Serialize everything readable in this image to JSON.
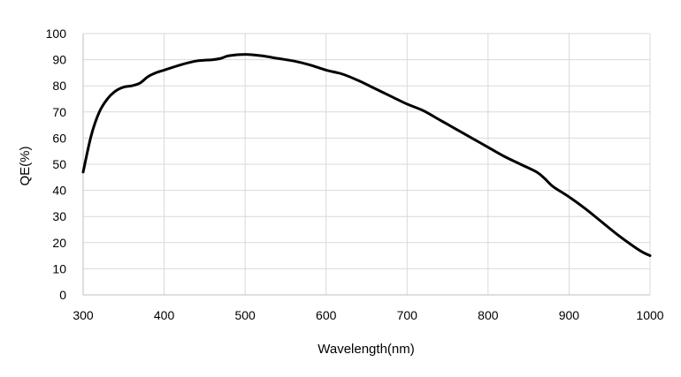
{
  "chart_data": {
    "type": "line",
    "xlabel": "Wavelength(nm)",
    "ylabel": "QE(%)",
    "xlim": [
      300,
      1000
    ],
    "ylim": [
      0,
      100
    ],
    "xticks": [
      300,
      400,
      500,
      600,
      700,
      800,
      900,
      1000
    ],
    "yticks": [
      0,
      10,
      20,
      30,
      40,
      50,
      60,
      70,
      80,
      90,
      100
    ],
    "grid": "vertical and horizontal",
    "legend": "none",
    "series": [
      {
        "color": "#000000",
        "x": [
          300,
          310,
          320,
          330,
          340,
          350,
          360,
          370,
          380,
          390,
          400,
          420,
          440,
          460,
          470,
          480,
          500,
          520,
          540,
          560,
          580,
          600,
          620,
          640,
          660,
          680,
          700,
          720,
          740,
          760,
          780,
          800,
          820,
          840,
          860,
          870,
          880,
          900,
          920,
          940,
          960,
          980,
          990,
          1000
        ],
        "values": [
          47,
          61,
          70,
          75,
          78,
          79.5,
          80,
          81,
          83.5,
          85,
          86,
          88,
          89.5,
          90,
          90.5,
          91.5,
          92,
          91.5,
          90.5,
          89.5,
          88,
          86,
          84.5,
          82,
          79,
          76,
          73,
          70.5,
          67,
          63.5,
          60,
          56.5,
          53,
          50,
          47,
          44.5,
          41.5,
          37.5,
          33,
          28,
          23,
          18.5,
          16.5,
          15
        ]
      }
    ]
  }
}
